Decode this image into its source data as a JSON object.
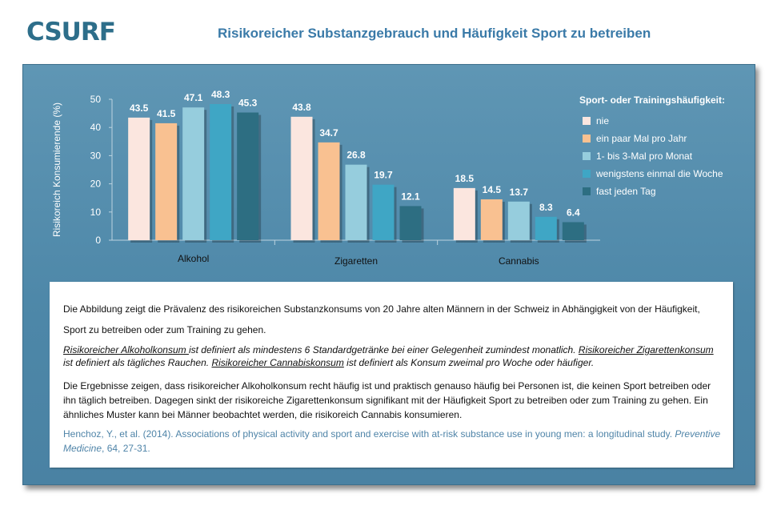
{
  "header": {
    "logo": "CSURF",
    "title": "Risikoreicher Substanzgebrauch und Häufigkeit  Sport zu betreiben"
  },
  "colors": {
    "nie": "#fbe6df",
    "paar": "#f9c191",
    "monat": "#96cddd",
    "woche": "#3fa6c5",
    "taeglich": "#2d6e82"
  },
  "chart_data": {
    "type": "bar",
    "categories": [
      "Alkohol",
      "Zigaretten",
      "Cannabis"
    ],
    "ylabel": "Risikoreich Konsumierende (%)",
    "ylim": [
      0,
      50
    ],
    "yticks": [
      0,
      10,
      20,
      30,
      40,
      50
    ],
    "legend_title": "Sport- oder Trainingshäufigkeit:",
    "legend_position": "right",
    "grid": false,
    "series": [
      {
        "name": "nie",
        "color": "#fbe6df",
        "values": [
          43.5,
          43.8,
          18.5
        ],
        "labels": [
          "43.5",
          "43.8",
          "18.5"
        ]
      },
      {
        "name": "ein paar Mal pro Jahr",
        "color": "#f9c191",
        "values": [
          41.5,
          34.7,
          14.5
        ],
        "labels": [
          "41.5",
          "34.7",
          "14.5"
        ]
      },
      {
        "name": "1- bis 3-Mal pro Monat",
        "color": "#96cddd",
        "values": [
          47.1,
          26.8,
          13.7
        ],
        "labels": [
          "47.1",
          "26.8",
          "13.7"
        ]
      },
      {
        "name": "wenigstens einmal die Woche",
        "color": "#3fa6c5",
        "values": [
          48.3,
          19.7,
          8.3
        ],
        "labels": [
          "48.3",
          "19.7",
          "8.3"
        ]
      },
      {
        "name": "fast jeden Tag",
        "color": "#2d6e82",
        "values": [
          45.3,
          12.1,
          6.4
        ],
        "labels": [
          "45.3",
          "12.1",
          "6.4"
        ]
      }
    ]
  },
  "textbox": {
    "p1": "Die Abbildung  zeigt  die Prävalenz des risikoreichen Substanzkonsums  von 20 Jahre alten Männern  in der Schweiz   in Abhängigkeit von der Häufigkeit, Sport zu betreiben oder zum Training zu gehen.",
    "def_alk_term": "Risikoreicher Alkoholkonsum  ",
    "def_alk_text": " ist definiert als mindestens 6 Standardgetränke  bei einer Gelegenheit zumindest monatlich.  ",
    "def_zig_term": "Risikoreicher Zigarettenkonsum ",
    "def_zig_text": "ist definiert als tägliches Rauchen. ",
    "def_can_term": "Risikoreicher Cannabiskonsum",
    "def_can_text": "  ist definiert als Konsum zweimal pro Woche oder häufiger.",
    "p3": "Die Ergebnisse zeigen, dass risikoreicher Alkoholkonsum  recht häufig ist und praktisch genauso häufig bei Personen ist, die keinen Sport betreiben oder ihn täglich betreiben.  Dagegen sinkt der risikoreiche Zigarettenkonsum  signifikant mit der Häufigkeit Sport zu betreiben oder zum Training zu gehen. Ein ähnliches Muster kann bei Männer beobachtet werden, die risikoreich Cannabis konsumieren.",
    "ref_authors": "Henchoz, Y., et al. (2014). Associations of physical activity and sport and exercise with at-risk substance use in young men: a longitudinal   study. ",
    "ref_journal": "Preventive Medicine",
    "ref_tail": ", 64, 27-31."
  }
}
